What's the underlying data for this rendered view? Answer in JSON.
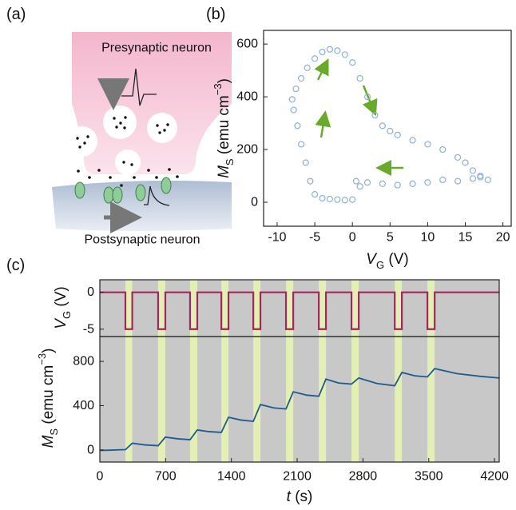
{
  "panel_labels": [
    "(a)",
    "(b)",
    "(c)"
  ],
  "diagram": {
    "top_label": "Presynaptic neuron",
    "bottom_label": "Postsynaptic neuron"
  },
  "chart_data": [
    {
      "type": "scatter",
      "x_label": {
        "symbol": "V",
        "subscript": "G",
        "unit": " (V)"
      },
      "y_label": {
        "symbol": "M",
        "subscript": "S",
        "unit": " (emu cm",
        "superscript": "−3",
        "close": ")"
      },
      "color": "#8fb0d8",
      "x": [
        0,
        -1,
        -2,
        -3,
        -4,
        -5,
        -5.6,
        -6.2,
        -6.8,
        -7.3,
        -7.8,
        -8,
        -7.5,
        -6.8,
        -6,
        -5,
        -4,
        -3,
        -2,
        -1,
        0,
        1,
        2,
        3,
        4,
        5,
        6,
        8,
        10,
        12,
        14,
        15,
        16,
        17,
        18,
        17,
        16,
        14,
        12,
        10,
        8,
        6,
        4,
        2,
        0.5,
        1
      ],
      "y": [
        10,
        8,
        10,
        12,
        15,
        30,
        80,
        150,
        220,
        290,
        350,
        390,
        430,
        470,
        510,
        545,
        570,
        580,
        575,
        560,
        530,
        470,
        400,
        330,
        290,
        270,
        255,
        235,
        220,
        200,
        170,
        150,
        120,
        100,
        85,
        95,
        90,
        80,
        85,
        75,
        70,
        65,
        70,
        75,
        80,
        60
      ],
      "xlim": [
        -11.8,
        21.1
      ],
      "ylim": [
        -91,
        652
      ],
      "xticks": [
        -10,
        -5,
        0,
        5,
        10,
        15,
        20
      ],
      "yticks": [
        0,
        200,
        400,
        600
      ]
    },
    {
      "type": "line",
      "y_label": {
        "symbol": "V",
        "subscript": "G",
        "unit": " (V)"
      },
      "color": "#a0285a",
      "x": [
        0,
        272,
        272,
        345,
        345,
        620,
        620,
        697,
        697,
        960,
        960,
        1037,
        1037,
        1293,
        1293,
        1369,
        1369,
        1633,
        1633,
        1709,
        1709,
        1981,
        1981,
        2058,
        2058,
        2330,
        2330,
        2406,
        2406,
        2678,
        2678,
        2755,
        2755,
        3138,
        3138,
        3214,
        3214,
        3486,
        3486,
        3563,
        3563,
        4250
      ],
      "values": [
        0,
        0,
        -5,
        -5,
        0,
        0,
        -5,
        -5,
        0,
        0,
        -5,
        -5,
        0,
        0,
        -5,
        -5,
        0,
        0,
        -5,
        -5,
        0,
        0,
        -5,
        -5,
        0,
        0,
        -5,
        -5,
        0,
        0,
        -5,
        -5,
        0,
        0,
        -5,
        -5,
        0,
        0,
        -5,
        -5,
        0,
        0
      ],
      "xlim": [
        0,
        4250
      ],
      "ylim": [
        -6,
        1.7
      ],
      "yticks": [
        0,
        -5
      ]
    },
    {
      "type": "line",
      "x_label": {
        "symbol": "t",
        "unit": " (s)"
      },
      "y_label": {
        "symbol": "M",
        "subscript": "S",
        "unit": " (emu cm",
        "superscript": "−3",
        "close": ")"
      },
      "color": "#1f5a8a",
      "x": [
        0,
        100,
        200,
        272,
        345,
        480,
        620,
        697,
        830,
        960,
        1037,
        1160,
        1293,
        1369,
        1500,
        1633,
        1709,
        1850,
        1981,
        2058,
        2200,
        2330,
        2406,
        2540,
        2678,
        2755,
        2950,
        3138,
        3214,
        3350,
        3486,
        3563,
        3800,
        4050,
        4250
      ],
      "values": [
        -5,
        -3,
        0,
        2,
        60,
        45,
        38,
        115,
        100,
        92,
        180,
        165,
        158,
        295,
        270,
        258,
        410,
        380,
        370,
        525,
        495,
        485,
        640,
        605,
        595,
        650,
        600,
        580,
        700,
        670,
        660,
        735,
        690,
        665,
        650
      ],
      "xlim": [
        0,
        4250
      ],
      "ylim": [
        -110,
        1025
      ],
      "xticks": [
        0,
        700,
        1400,
        2100,
        2800,
        3500,
        4200
      ],
      "yticks": [
        0,
        400,
        800
      ]
    }
  ]
}
